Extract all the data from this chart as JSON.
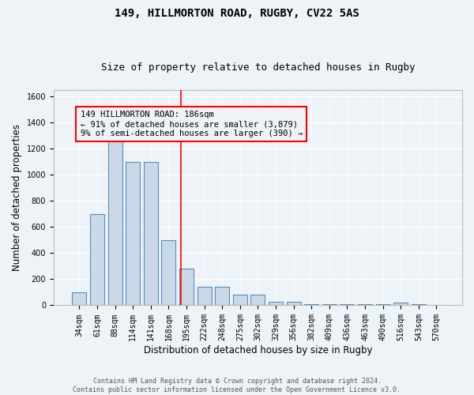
{
  "title1": "149, HILLMORTON ROAD, RUGBY, CV22 5AS",
  "title2": "Size of property relative to detached houses in Rugby",
  "xlabel": "Distribution of detached houses by size in Rugby",
  "ylabel": "Number of detached properties",
  "bar_labels": [
    "34sqm",
    "61sqm",
    "88sqm",
    "114sqm",
    "141sqm",
    "168sqm",
    "195sqm",
    "222sqm",
    "248sqm",
    "275sqm",
    "302sqm",
    "329sqm",
    "356sqm",
    "382sqm",
    "409sqm",
    "436sqm",
    "463sqm",
    "490sqm",
    "516sqm",
    "543sqm",
    "570sqm"
  ],
  "bar_heights": [
    100,
    700,
    1350,
    1100,
    1100,
    500,
    280,
    140,
    140,
    80,
    80,
    30,
    30,
    10,
    10,
    10,
    10,
    10,
    20,
    10,
    0
  ],
  "bar_color": "#c9d9e8",
  "bar_edgecolor": "#5b8db8",
  "bar_width": 0.8,
  "ylim": [
    0,
    1650
  ],
  "yticks": [
    0,
    200,
    400,
    600,
    800,
    1000,
    1200,
    1400,
    1600
  ],
  "red_line_x": 5.67,
  "annotation_text": "149 HILLMORTON ROAD: 186sqm\n← 91% of detached houses are smaller (3,879)\n9% of semi-detached houses are larger (390) →",
  "footer1": "Contains HM Land Registry data © Crown copyright and database right 2024.",
  "footer2": "Contains public sector information licensed under the Open Government Licence v3.0.",
  "background_color": "#eef3f8",
  "grid_color": "#ffffff",
  "title1_fontsize": 10,
  "title2_fontsize": 9,
  "xlabel_fontsize": 8.5,
  "ylabel_fontsize": 8.5,
  "tick_fontsize": 7,
  "annotation_fontsize": 7.5,
  "footer_fontsize": 6
}
